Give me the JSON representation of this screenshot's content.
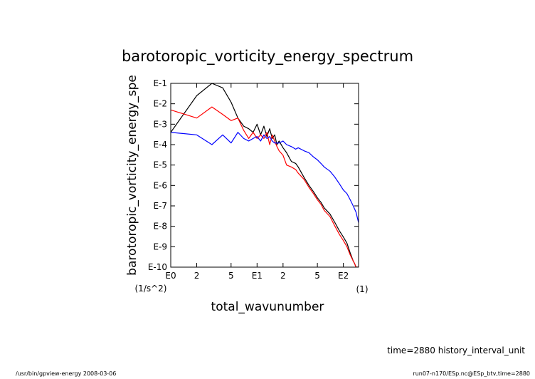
{
  "chart_data": {
    "type": "line",
    "title": "barotoropic_vorticity_energy_spectrum",
    "xlabel": "total_wavunumber",
    "xunit": "(1)",
    "ylabel": "barotoropic_vorticity_energy_spe",
    "yunit": "(1/s^2)",
    "x_scale": "log",
    "y_scale": "log",
    "xlim": [
      1,
      150
    ],
    "ylim": [
      1e-10,
      0.1
    ],
    "x_ticks": [
      {
        "value": 1,
        "label": "E0"
      },
      {
        "value": 2,
        "label": "2"
      },
      {
        "value": 5,
        "label": "5"
      },
      {
        "value": 10,
        "label": "E1"
      },
      {
        "value": 20,
        "label": "2"
      },
      {
        "value": 50,
        "label": "5"
      },
      {
        "value": 100,
        "label": "E2"
      }
    ],
    "y_ticks": [
      {
        "value": 0.1,
        "label": "E-1"
      },
      {
        "value": 0.01,
        "label": "E-2"
      },
      {
        "value": 0.001,
        "label": "E-3"
      },
      {
        "value": 0.0001,
        "label": "E-4"
      },
      {
        "value": 1e-05,
        "label": "E-5"
      },
      {
        "value": 1e-06,
        "label": "E-6"
      },
      {
        "value": 1e-07,
        "label": "E-7"
      },
      {
        "value": 1e-08,
        "label": "E-8"
      },
      {
        "value": 1e-09,
        "label": "E-9"
      },
      {
        "value": 1e-10,
        "label": "E-10"
      }
    ],
    "grid": false,
    "legend": "none",
    "series": [
      {
        "color": "#000000",
        "x": [
          1,
          2,
          3,
          4,
          5,
          6,
          7,
          8,
          9,
          10,
          11,
          12,
          13,
          14,
          15,
          16,
          17,
          18,
          20,
          22,
          25,
          28,
          30,
          35,
          40,
          45,
          50,
          55,
          60,
          70,
          80,
          90,
          100,
          110,
          120,
          130,
          135,
          140,
          145,
          150
        ],
        "y": [
          0.0004,
          0.025,
          0.1,
          0.06,
          0.012,
          0.002,
          0.0008,
          0.0006,
          0.0004,
          0.001,
          0.0003,
          0.0008,
          0.00025,
          0.0006,
          0.0002,
          0.0003,
          0.0001,
          0.00015,
          7e-05,
          4e-05,
          1.5e-05,
          1.2e-05,
          8e-06,
          2.5e-06,
          1e-06,
          5e-07,
          2.5e-07,
          1.5e-07,
          8e-08,
          4e-08,
          1.5e-08,
          6e-09,
          3e-09,
          1.5e-09,
          5e-10,
          2e-10,
          1.5e-10,
          1e-10,
          1e-10,
          1e-10
        ]
      },
      {
        "color": "#ff0000",
        "x": [
          1,
          2,
          3,
          4,
          5,
          6,
          7,
          8,
          9,
          10,
          11,
          12,
          13,
          14,
          15,
          16,
          17,
          18,
          20,
          22,
          25,
          28,
          30,
          35,
          40,
          45,
          50,
          55,
          60,
          70,
          80,
          90,
          100,
          110,
          120,
          130,
          135,
          140,
          145,
          150
        ],
        "y": [
          0.005,
          0.002,
          0.007,
          0.003,
          0.0015,
          0.002,
          0.0005,
          0.0002,
          0.0004,
          0.0002,
          0.0003,
          0.0002,
          0.0004,
          0.0001,
          0.0003,
          0.00015,
          8e-05,
          5e-05,
          3e-05,
          1e-05,
          8e-06,
          6e-06,
          4e-06,
          2e-06,
          8e-07,
          4e-07,
          2e-07,
          1.2e-07,
          6e-08,
          3e-08,
          1e-08,
          4e-09,
          2e-09,
          1e-09,
          4e-10,
          2e-10,
          1.5e-10,
          1e-10,
          1e-10,
          1e-10
        ]
      },
      {
        "color": "#0000ff",
        "x": [
          1,
          2,
          3,
          4,
          5,
          6,
          7,
          8,
          9,
          10,
          11,
          12,
          13,
          14,
          15,
          16,
          17,
          18,
          20,
          22,
          25,
          28,
          30,
          35,
          40,
          45,
          50,
          55,
          60,
          70,
          80,
          90,
          100,
          110,
          120,
          130,
          140,
          150
        ],
        "y": [
          0.0004,
          0.0003,
          0.0001,
          0.0003,
          0.00012,
          0.0004,
          0.0002,
          0.00015,
          0.0002,
          0.00025,
          0.00015,
          0.0003,
          0.0002,
          0.00025,
          0.00015,
          0.00012,
          0.00012,
          0.00012,
          0.00015,
          0.0001,
          8e-05,
          6e-05,
          7e-05,
          5e-05,
          4e-05,
          2.5e-05,
          1.8e-05,
          1.2e-05,
          8e-06,
          5e-06,
          2.5e-06,
          1.2e-06,
          6e-07,
          4e-07,
          2e-07,
          1e-07,
          5e-08,
          1.5e-08
        ]
      }
    ]
  },
  "annotation": {
    "time_label": "time=2880 history_interval_unit"
  },
  "footer": {
    "left": "/usr/bin/gpview-energy  2008-03-06",
    "right": "run07-n170/ESp.nc@ESp_btv,time=2880"
  }
}
